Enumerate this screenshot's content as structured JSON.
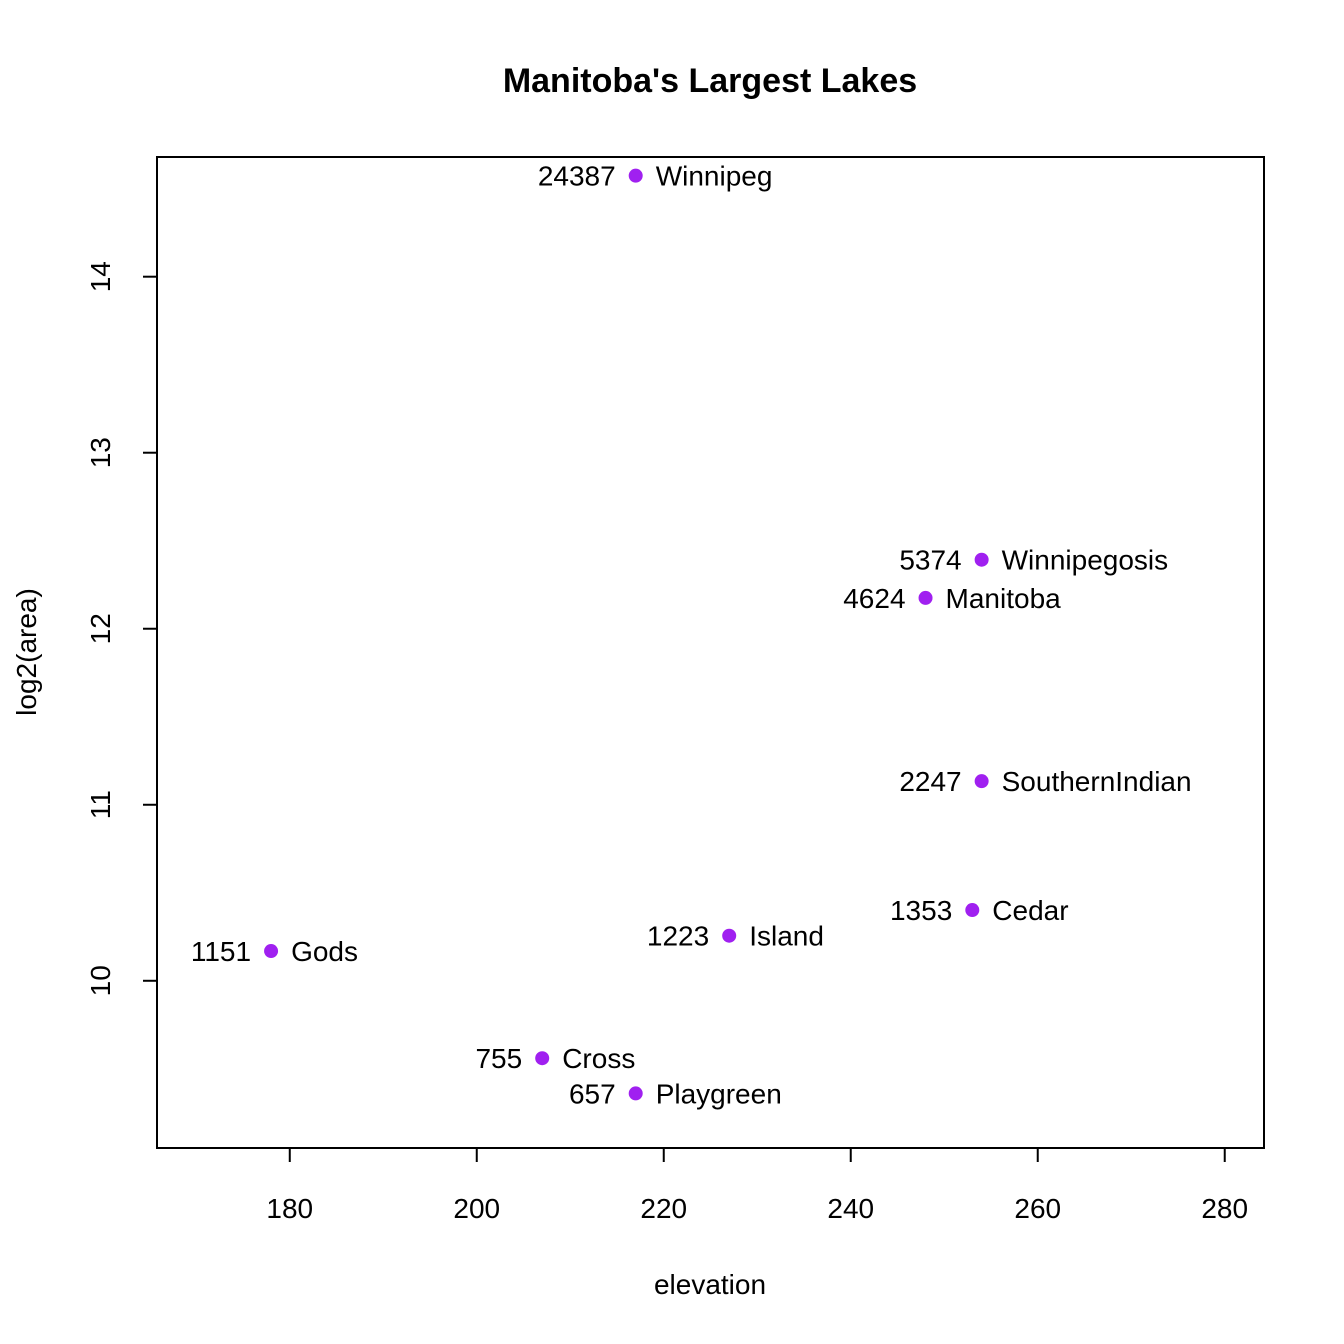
{
  "chart_data": {
    "type": "scatter",
    "title": "Manitoba's Largest Lakes",
    "xlabel": "elevation",
    "ylabel": "log2(area)",
    "xlim": [
      165.8,
      284.2
    ],
    "ylim": [
      9.05,
      14.68
    ],
    "xticks": [
      180,
      200,
      220,
      240,
      260,
      280
    ],
    "yticks": [
      10,
      11,
      12,
      13,
      14
    ],
    "point_color": "#A020F0",
    "grid": false,
    "points": [
      {
        "name": "Winnipeg",
        "area": "24387",
        "x": 217,
        "y": 14.574
      },
      {
        "name": "Winnipegosis",
        "area": "5374",
        "x": 254,
        "y": 12.392
      },
      {
        "name": "Manitoba",
        "area": "4624",
        "x": 248,
        "y": 12.175
      },
      {
        "name": "SouthernIndian",
        "area": "2247",
        "x": 254,
        "y": 11.134
      },
      {
        "name": "Cedar",
        "area": "1353",
        "x": 253,
        "y": 10.402
      },
      {
        "name": "Island",
        "area": "1223",
        "x": 227,
        "y": 10.256
      },
      {
        "name": "Gods",
        "area": "1151",
        "x": 178,
        "y": 10.169
      },
      {
        "name": "Cross",
        "area": "755",
        "x": 207,
        "y": 9.56
      },
      {
        "name": "Playgreen",
        "area": "657",
        "x": 217,
        "y": 9.36
      }
    ]
  }
}
